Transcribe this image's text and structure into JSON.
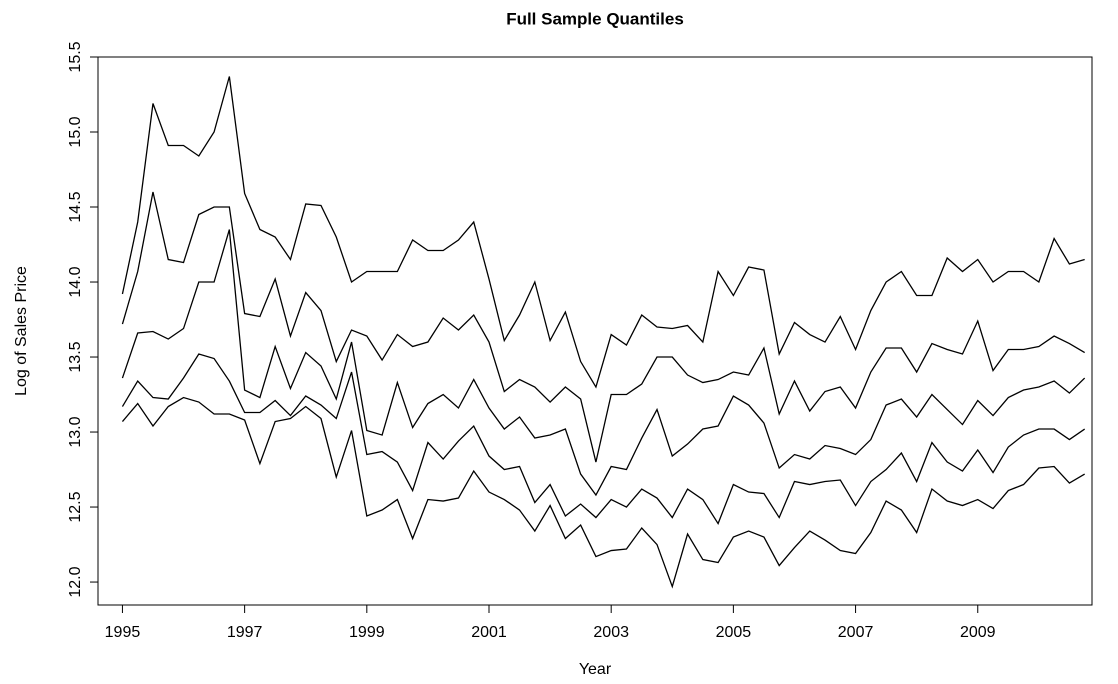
{
  "chart_data": {
    "type": "line",
    "title": "Full Sample Quantiles",
    "xlabel": "Year",
    "ylabel": "Log of Sales Price",
    "x": [
      1995,
      1995.25,
      1995.5,
      1995.75,
      1996,
      1996.25,
      1996.5,
      1996.75,
      1997,
      1997.25,
      1997.5,
      1997.75,
      1998,
      1998.25,
      1998.5,
      1998.75,
      1999,
      1999.25,
      1999.5,
      1999.75,
      2000,
      2000.25,
      2000.5,
      2000.75,
      2001,
      2001.25,
      2001.5,
      2001.75,
      2002,
      2002.25,
      2002.5,
      2002.75,
      2003,
      2003.25,
      2003.5,
      2003.75,
      2004,
      2004.25,
      2004.5,
      2004.75,
      2005,
      2005.25,
      2005.5,
      2005.75,
      2006,
      2006.25,
      2006.5,
      2006.75,
      2007,
      2007.25,
      2007.5,
      2007.75,
      2008,
      2008.25,
      2008.5,
      2008.75,
      2009,
      2009.25,
      2009.5,
      2009.75,
      2010,
      2010.25,
      2010.5,
      2010.75
    ],
    "series": [
      {
        "color": "#000000",
        "values": [
          13.92,
          14.4,
          15.19,
          14.91,
          14.91,
          14.84,
          15.0,
          15.37,
          14.59,
          14.35,
          14.3,
          14.15,
          14.52,
          14.51,
          14.3,
          14.0,
          14.07,
          14.07,
          14.07,
          14.28,
          14.21,
          14.21,
          14.28,
          14.4,
          14.02,
          13.61,
          13.78,
          14.0,
          13.61,
          13.8,
          13.47,
          13.3,
          13.65,
          13.58,
          13.78,
          13.7,
          13.69,
          13.71,
          13.6,
          14.07,
          13.91,
          14.1,
          14.08,
          13.52,
          13.73,
          13.65,
          13.6,
          13.77,
          13.55,
          13.81,
          14.0,
          14.07,
          13.91,
          13.91,
          14.16,
          14.07,
          14.15,
          14.0,
          14.07,
          14.07,
          14.0,
          14.29,
          14.12,
          14.15
        ]
      },
      {
        "color": "#000000",
        "values": [
          13.72,
          14.07,
          14.6,
          14.15,
          14.13,
          14.45,
          14.5,
          14.5,
          13.79,
          13.77,
          14.02,
          13.64,
          13.93,
          13.81,
          13.47,
          13.68,
          13.64,
          13.48,
          13.65,
          13.57,
          13.6,
          13.76,
          13.68,
          13.78,
          13.6,
          13.27,
          13.35,
          13.3,
          13.2,
          13.3,
          13.22,
          12.8,
          13.25,
          13.25,
          13.32,
          13.5,
          13.5,
          13.38,
          13.33,
          13.35,
          13.4,
          13.38,
          13.56,
          13.12,
          13.34,
          13.14,
          13.27,
          13.3,
          13.16,
          13.4,
          13.56,
          13.56,
          13.4,
          13.59,
          13.55,
          13.52,
          13.74,
          13.41,
          13.55,
          13.55,
          13.57,
          13.64,
          13.59,
          13.53
        ]
      },
      {
        "color": "#000000",
        "values": [
          13.36,
          13.66,
          13.67,
          13.62,
          13.69,
          14.0,
          14.0,
          14.35,
          13.28,
          13.23,
          13.57,
          13.29,
          13.53,
          13.44,
          13.22,
          13.6,
          13.01,
          12.98,
          13.33,
          13.03,
          13.19,
          13.25,
          13.16,
          13.35,
          13.16,
          13.02,
          13.1,
          12.96,
          12.98,
          13.02,
          12.72,
          12.58,
          12.77,
          12.75,
          12.96,
          13.15,
          12.84,
          12.92,
          13.02,
          13.04,
          13.24,
          13.18,
          13.06,
          12.76,
          12.85,
          12.82,
          12.91,
          12.89,
          12.85,
          12.95,
          13.18,
          13.22,
          13.1,
          13.25,
          13.15,
          13.05,
          13.21,
          13.11,
          13.23,
          13.28,
          13.3,
          13.34,
          13.26,
          13.36
        ]
      },
      {
        "color": "#000000",
        "values": [
          13.17,
          13.34,
          13.23,
          13.22,
          13.36,
          13.52,
          13.49,
          13.34,
          13.13,
          13.13,
          13.21,
          13.11,
          13.24,
          13.18,
          13.09,
          13.4,
          12.85,
          12.87,
          12.8,
          12.61,
          12.93,
          12.82,
          12.94,
          13.04,
          12.84,
          12.75,
          12.77,
          12.53,
          12.65,
          12.44,
          12.52,
          12.43,
          12.55,
          12.5,
          12.62,
          12.56,
          12.43,
          12.62,
          12.55,
          12.39,
          12.65,
          12.6,
          12.59,
          12.43,
          12.67,
          12.65,
          12.67,
          12.68,
          12.51,
          12.67,
          12.75,
          12.86,
          12.67,
          12.93,
          12.8,
          12.74,
          12.88,
          12.73,
          12.9,
          12.98,
          13.02,
          13.02,
          12.95,
          13.02
        ]
      },
      {
        "color": "#000000",
        "values": [
          13.07,
          13.19,
          13.04,
          13.17,
          13.23,
          13.2,
          13.12,
          13.12,
          13.08,
          12.79,
          13.07,
          13.09,
          13.17,
          13.09,
          12.7,
          13.01,
          12.44,
          12.48,
          12.55,
          12.29,
          12.55,
          12.54,
          12.56,
          12.74,
          12.6,
          12.55,
          12.48,
          12.34,
          12.51,
          12.29,
          12.38,
          12.17,
          12.21,
          12.22,
          12.36,
          12.25,
          11.97,
          12.32,
          12.15,
          12.13,
          12.3,
          12.34,
          12.3,
          12.11,
          12.23,
          12.34,
          12.28,
          12.21,
          12.19,
          12.33,
          12.54,
          12.48,
          12.33,
          12.62,
          12.54,
          12.51,
          12.55,
          12.49,
          12.61,
          12.65,
          12.76,
          12.77,
          12.66,
          12.72
        ]
      }
    ],
    "xlim": [
      1994.6,
      2010.87
    ],
    "xticks": [
      1995,
      1997,
      1999,
      2001,
      2003,
      2005,
      2007,
      2009
    ],
    "ylim": [
      11.847,
      15.5
    ],
    "yticks": [
      {
        "value": 12,
        "label": "12.0"
      },
      12.5,
      {
        "value": 13,
        "label": "13.0"
      },
      13.5,
      {
        "value": 14,
        "label": "14.0"
      },
      14.5,
      {
        "value": 15,
        "label": "15.0"
      },
      15.5
    ],
    "grid": false
  }
}
